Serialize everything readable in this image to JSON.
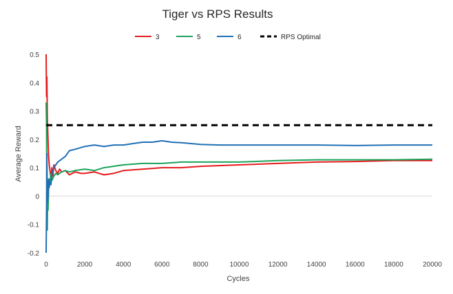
{
  "chart_data": {
    "type": "line",
    "title": "Tiger vs RPS Results",
    "xlabel": "Cycles",
    "ylabel": "Average Reward",
    "xlim": [
      0,
      20000
    ],
    "ylim": [
      -0.2,
      0.5
    ],
    "x_ticks": [
      0,
      2000,
      4000,
      6000,
      8000,
      10000,
      12000,
      14000,
      16000,
      18000,
      20000
    ],
    "y_ticks": [
      -0.2,
      -0.1,
      0,
      0.1,
      0.2,
      0.3,
      0.4,
      0.5
    ],
    "grid": false,
    "legend_position": "top",
    "series": [
      {
        "name": "3",
        "color": "#e41a1c",
        "style": "solid",
        "x": [
          0,
          20,
          40,
          60,
          90,
          120,
          160,
          200,
          250,
          300,
          350,
          400,
          500,
          600,
          700,
          800,
          1000,
          1200,
          1500,
          1800,
          2000,
          2500,
          3000,
          3500,
          4000,
          5000,
          6000,
          7000,
          8000,
          10000,
          12000,
          14000,
          16000,
          18000,
          20000
        ],
        "y": [
          0.5,
          0.35,
          0.42,
          0.28,
          0.22,
          0.15,
          0.11,
          0.09,
          0.06,
          0.1,
          0.07,
          0.11,
          0.09,
          0.08,
          0.095,
          0.085,
          0.09,
          0.075,
          0.085,
          0.08,
          0.08,
          0.085,
          0.075,
          0.08,
          0.09,
          0.095,
          0.1,
          0.1,
          0.105,
          0.11,
          0.115,
          0.12,
          0.122,
          0.125,
          0.125
        ]
      },
      {
        "name": "5",
        "color": "#1aa35a",
        "style": "solid",
        "x": [
          0,
          20,
          40,
          60,
          80,
          100,
          130,
          160,
          200,
          250,
          300,
          400,
          500,
          600,
          800,
          1000,
          1200,
          1500,
          2000,
          2500,
          3000,
          4000,
          5000,
          6000,
          7000,
          8000,
          10000,
          12000,
          14000,
          16000,
          18000,
          20000
        ],
        "y": [
          0.33,
          0.25,
          -0.1,
          -0.12,
          0.0,
          -0.05,
          0.02,
          0.06,
          0.05,
          0.08,
          0.055,
          0.07,
          0.08,
          0.075,
          0.085,
          0.09,
          0.085,
          0.09,
          0.095,
          0.09,
          0.1,
          0.11,
          0.115,
          0.115,
          0.12,
          0.12,
          0.12,
          0.125,
          0.128,
          0.128,
          0.128,
          0.13
        ]
      },
      {
        "name": "6",
        "color": "#1f6fb4",
        "style": "solid",
        "x": [
          0,
          20,
          40,
          60,
          80,
          100,
          130,
          160,
          200,
          250,
          300,
          400,
          500,
          600,
          800,
          1000,
          1200,
          1500,
          2000,
          2500,
          3000,
          3500,
          4000,
          4500,
          5000,
          5500,
          6000,
          6500,
          7000,
          8000,
          9000,
          10000,
          12000,
          14000,
          16000,
          18000,
          20000
        ],
        "y": [
          -0.2,
          -0.05,
          0.15,
          0.0,
          -0.02,
          0.0,
          0.06,
          0.03,
          0.05,
          0.04,
          0.08,
          0.1,
          0.11,
          0.12,
          0.13,
          0.14,
          0.16,
          0.165,
          0.175,
          0.18,
          0.175,
          0.18,
          0.18,
          0.185,
          0.19,
          0.19,
          0.195,
          0.19,
          0.188,
          0.182,
          0.18,
          0.18,
          0.18,
          0.18,
          0.178,
          0.18,
          0.18
        ]
      },
      {
        "name": "RPS Optimal",
        "color": "#000000",
        "style": "dashed",
        "x": [
          0,
          20000
        ],
        "y": [
          0.25,
          0.25
        ]
      }
    ]
  }
}
